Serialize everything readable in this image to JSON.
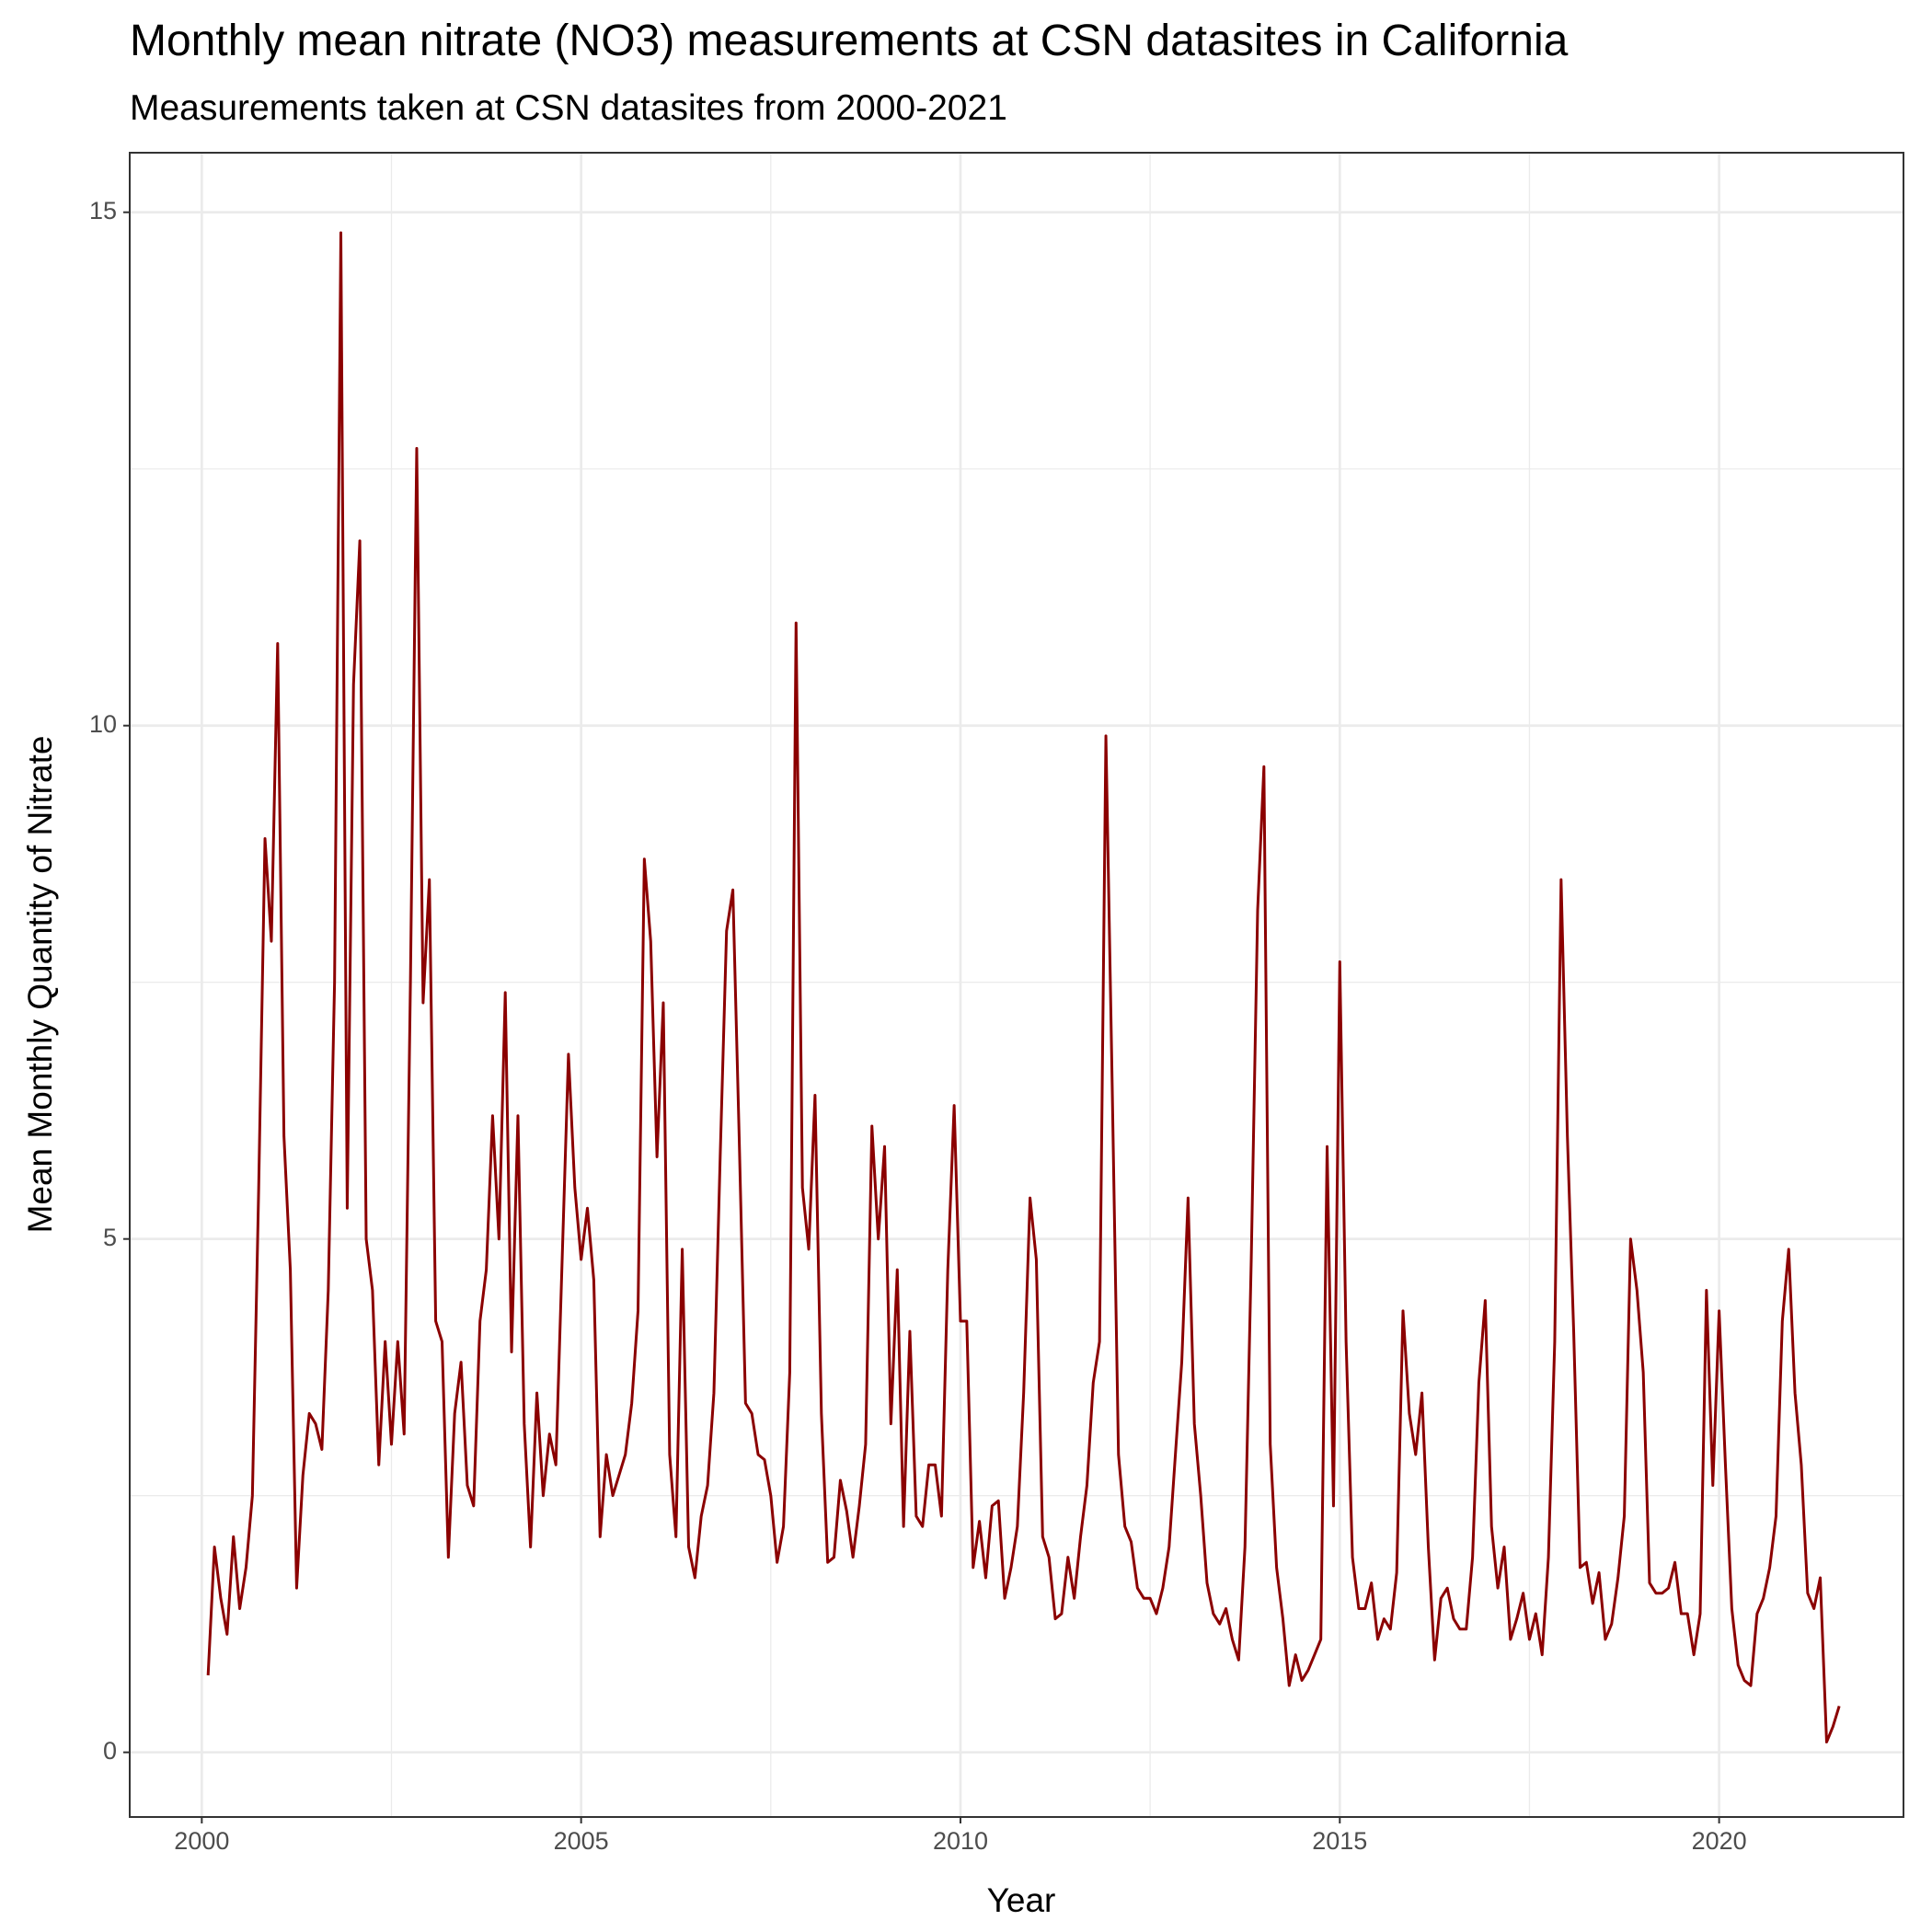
{
  "chart_data": {
    "type": "line",
    "title": "Monthly mean nitrate (NO3) measurements at CSN datasites in California",
    "subtitle": "Measurements taken at CSN datasites from 2000-2021",
    "xlabel": "Year",
    "ylabel": "Mean Monthly Quantity of Nitrate",
    "color": "#8b0000",
    "grid": true,
    "xlim": [
      1999.05,
      2022.43
    ],
    "xticks": [
      2000,
      2005,
      2010,
      2015,
      2020
    ],
    "ylim": [
      -0.63,
      15.58
    ],
    "yticks": [
      0,
      5,
      10,
      15
    ],
    "x": [
      2000.083,
      2000.167,
      2000.25,
      2000.333,
      2000.417,
      2000.5,
      2000.583,
      2000.667,
      2000.75,
      2000.833,
      2000.917,
      2001,
      2001.083,
      2001.167,
      2001.25,
      2001.333,
      2001.417,
      2001.5,
      2001.583,
      2001.667,
      2001.75,
      2001.833,
      2001.917,
      2002,
      2002.083,
      2002.167,
      2002.25,
      2002.333,
      2002.417,
      2002.5,
      2002.583,
      2002.667,
      2002.75,
      2002.833,
      2002.917,
      2003,
      2003.083,
      2003.167,
      2003.25,
      2003.333,
      2003.417,
      2003.5,
      2003.583,
      2003.667,
      2003.75,
      2003.833,
      2003.917,
      2004,
      2004.083,
      2004.167,
      2004.25,
      2004.333,
      2004.417,
      2004.5,
      2004.583,
      2004.667,
      2004.75,
      2004.833,
      2004.917,
      2005,
      2005.083,
      2005.167,
      2005.25,
      2005.333,
      2005.417,
      2005.5,
      2005.583,
      2005.667,
      2005.75,
      2005.833,
      2005.917,
      2006,
      2006.083,
      2006.167,
      2006.25,
      2006.333,
      2006.417,
      2006.5,
      2006.583,
      2006.667,
      2006.75,
      2006.833,
      2006.917,
      2007,
      2007.083,
      2007.167,
      2007.25,
      2007.333,
      2007.417,
      2007.5,
      2007.583,
      2007.667,
      2007.75,
      2007.833,
      2007.917,
      2008,
      2008.083,
      2008.167,
      2008.25,
      2008.333,
      2008.417,
      2008.5,
      2008.583,
      2008.667,
      2008.75,
      2008.833,
      2008.917,
      2009,
      2009.083,
      2009.167,
      2009.25,
      2009.333,
      2009.417,
      2009.5,
      2009.583,
      2009.667,
      2009.75,
      2009.833,
      2009.917,
      2010,
      2010.083,
      2010.167,
      2010.25,
      2010.333,
      2010.417,
      2010.5,
      2010.583,
      2010.667,
      2010.75,
      2010.833,
      2010.917,
      2011,
      2011.083,
      2011.167,
      2011.25,
      2011.333,
      2011.417,
      2011.5,
      2011.583,
      2011.667,
      2011.75,
      2011.833,
      2011.917,
      2012,
      2012.083,
      2012.167,
      2012.25,
      2012.333,
      2012.417,
      2012.5,
      2012.583,
      2012.667,
      2012.75,
      2012.833,
      2012.917,
      2013,
      2013.083,
      2013.167,
      2013.25,
      2013.333,
      2013.417,
      2013.5,
      2013.583,
      2013.667,
      2013.75,
      2013.833,
      2013.917,
      2014,
      2014.083,
      2014.167,
      2014.25,
      2014.333,
      2014.417,
      2014.5,
      2014.583,
      2014.667,
      2014.75,
      2014.833,
      2014.917,
      2015,
      2015.083,
      2015.167,
      2015.25,
      2015.333,
      2015.417,
      2015.5,
      2015.583,
      2015.667,
      2015.75,
      2015.833,
      2015.917,
      2016,
      2016.083,
      2016.167,
      2016.25,
      2016.333,
      2016.417,
      2016.5,
      2016.583,
      2016.667,
      2016.75,
      2016.833,
      2016.917,
      2017,
      2017.083,
      2017.167,
      2017.25,
      2017.333,
      2017.417,
      2017.5,
      2017.583,
      2017.667,
      2017.75,
      2017.833,
      2017.917,
      2018,
      2018.083,
      2018.167,
      2018.25,
      2018.333,
      2018.417,
      2018.5,
      2018.583,
      2018.667,
      2018.75,
      2018.833,
      2018.917,
      2019,
      2019.083,
      2019.167,
      2019.25,
      2019.333,
      2019.417,
      2019.5,
      2019.583,
      2019.667,
      2019.75,
      2019.833,
      2019.917,
      2020,
      2020.083,
      2020.167,
      2020.25,
      2020.333,
      2020.417,
      2020.5,
      2020.583,
      2020.667,
      2020.75,
      2020.833,
      2020.917,
      2021,
      2021.083,
      2021.167,
      2021.25,
      2021.333,
      2021.417,
      2021.5,
      2021.583
    ],
    "values": [
      0.75,
      2.0,
      1.5,
      1.15,
      2.1,
      1.4,
      1.8,
      2.5,
      5.5,
      8.9,
      7.9,
      10.8,
      6.0,
      4.7,
      1.6,
      2.7,
      3.3,
      3.2,
      2.95,
      4.5,
      7.5,
      14.8,
      5.3,
      10.4,
      11.8,
      5.0,
      4.5,
      2.8,
      4.0,
      3.0,
      4.0,
      3.1,
      7.5,
      12.7,
      7.3,
      8.5,
      4.2,
      4.0,
      1.9,
      3.3,
      3.8,
      2.6,
      2.4,
      4.2,
      4.7,
      6.2,
      5.0,
      7.4,
      3.9,
      6.2,
      3.2,
      2.0,
      3.5,
      2.5,
      3.1,
      2.8,
      4.8,
      6.8,
      5.5,
      4.8,
      5.3,
      4.6,
      2.1,
      2.9,
      2.5,
      2.7,
      2.9,
      3.4,
      4.3,
      8.7,
      7.9,
      5.8,
      7.3,
      2.9,
      2.1,
      4.9,
      2.0,
      1.7,
      2.3,
      2.6,
      3.5,
      5.8,
      8.0,
      8.4,
      6.0,
      3.4,
      3.3,
      2.9,
      2.85,
      2.5,
      1.85,
      2.2,
      3.7,
      11.0,
      5.5,
      4.9,
      6.4,
      3.3,
      1.85,
      1.9,
      2.65,
      2.35,
      1.9,
      2.4,
      3.0,
      6.1,
      5.0,
      5.9,
      3.2,
      4.7,
      2.2,
      4.1,
      2.3,
      2.2,
      2.8,
      2.8,
      2.3,
      4.7,
      6.3,
      4.2,
      4.2,
      1.8,
      2.25,
      1.7,
      2.4,
      2.45,
      1.5,
      1.8,
      2.2,
      3.5,
      5.4,
      4.8,
      2.1,
      1.9,
      1.3,
      1.35,
      1.9,
      1.5,
      2.1,
      2.6,
      3.6,
      4.0,
      9.9,
      6.5,
      2.9,
      2.2,
      2.05,
      1.6,
      1.5,
      1.5,
      1.35,
      1.6,
      2.0,
      2.9,
      3.8,
      5.4,
      3.2,
      2.5,
      1.65,
      1.35,
      1.25,
      1.4,
      1.1,
      0.9,
      2.0,
      4.8,
      8.2,
      9.6,
      3.0,
      1.8,
      1.3,
      0.65,
      0.95,
      0.7,
      0.8,
      0.95,
      1.1,
      5.9,
      2.4,
      7.7,
      4.0,
      1.9,
      1.4,
      1.4,
      1.65,
      1.1,
      1.3,
      1.2,
      1.75,
      4.3,
      3.3,
      2.9,
      3.5,
      2.0,
      0.9,
      1.5,
      1.6,
      1.3,
      1.2,
      1.2,
      1.9,
      3.6,
      4.4,
      2.2,
      1.6,
      2.0,
      1.1,
      1.3,
      1.55,
      1.1,
      1.35,
      0.95,
      1.9,
      4.0,
      8.5,
      6.0,
      4.1,
      1.8,
      1.85,
      1.45,
      1.75,
      1.1,
      1.25,
      1.7,
      2.3,
      5.0,
      4.5,
      3.7,
      1.65,
      1.55,
      1.55,
      1.6,
      1.85,
      1.35,
      1.35,
      0.95,
      1.35,
      4.5,
      2.6,
      4.3,
      2.8,
      1.4,
      0.85,
      0.7,
      0.65,
      1.35,
      1.5,
      1.8,
      2.3,
      4.2,
      4.9,
      3.5,
      2.8,
      1.55,
      1.4,
      1.7,
      0.1,
      0.25,
      0.45
    ]
  }
}
